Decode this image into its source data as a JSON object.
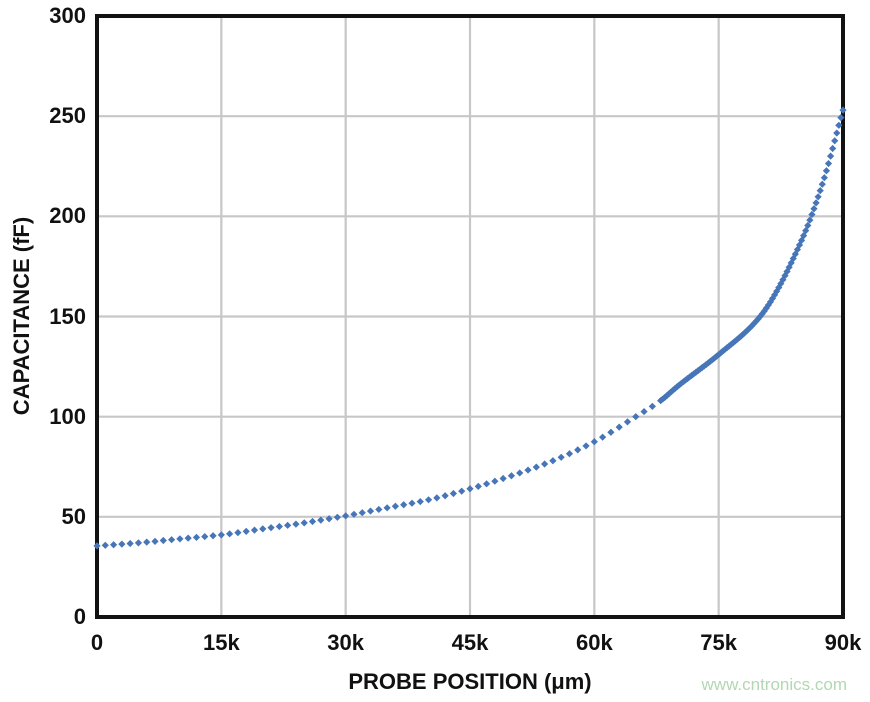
{
  "watermark": {
    "text": "www.cntronics.com"
  },
  "chart_data": {
    "type": "scatter",
    "title": "",
    "xlabel": "PROBE POSITION (μm)",
    "ylabel": "CAPACITANCE (fF)",
    "xlim": [
      0,
      90000
    ],
    "ylim": [
      0,
      300
    ],
    "x_tick_values": [
      0,
      15000,
      30000,
      45000,
      60000,
      75000,
      90000
    ],
    "x_tick_labels": [
      "0",
      "15k",
      "30k",
      "45k",
      "60k",
      "75k",
      "90k"
    ],
    "y_tick_values": [
      0,
      50,
      100,
      150,
      200,
      250,
      300
    ],
    "y_tick_labels": [
      "0",
      "50",
      "100",
      "150",
      "200",
      "250",
      "300"
    ],
    "grid": true,
    "legend": false,
    "marker": "diamond",
    "colors": {
      "marker": "#4675b8",
      "grid": "#c7c7c7",
      "axis": "#121212",
      "text": "#111111",
      "watermark": "#b2d8b2"
    },
    "anchor_points": {
      "x_um": [
        0,
        5000,
        10000,
        15000,
        20000,
        25000,
        30000,
        35000,
        40000,
        45000,
        50000,
        55000,
        60000,
        65000,
        68000,
        70000,
        75000,
        80000,
        85000,
        87500,
        90000
      ],
      "y_fF": [
        35.5,
        37,
        39,
        41,
        44,
        47,
        50.5,
        54.5,
        58.5,
        64,
        70.5,
        78,
        87.5,
        100,
        108,
        115,
        131,
        150,
        188,
        216,
        253
      ]
    },
    "sampling": {
      "sparse_start_um": 0,
      "sparse_end_um": 67000,
      "sparse_step_um": 1000,
      "dense_start_um": 68000,
      "dense_end_um": 90000,
      "dense_step_um": 250
    }
  }
}
